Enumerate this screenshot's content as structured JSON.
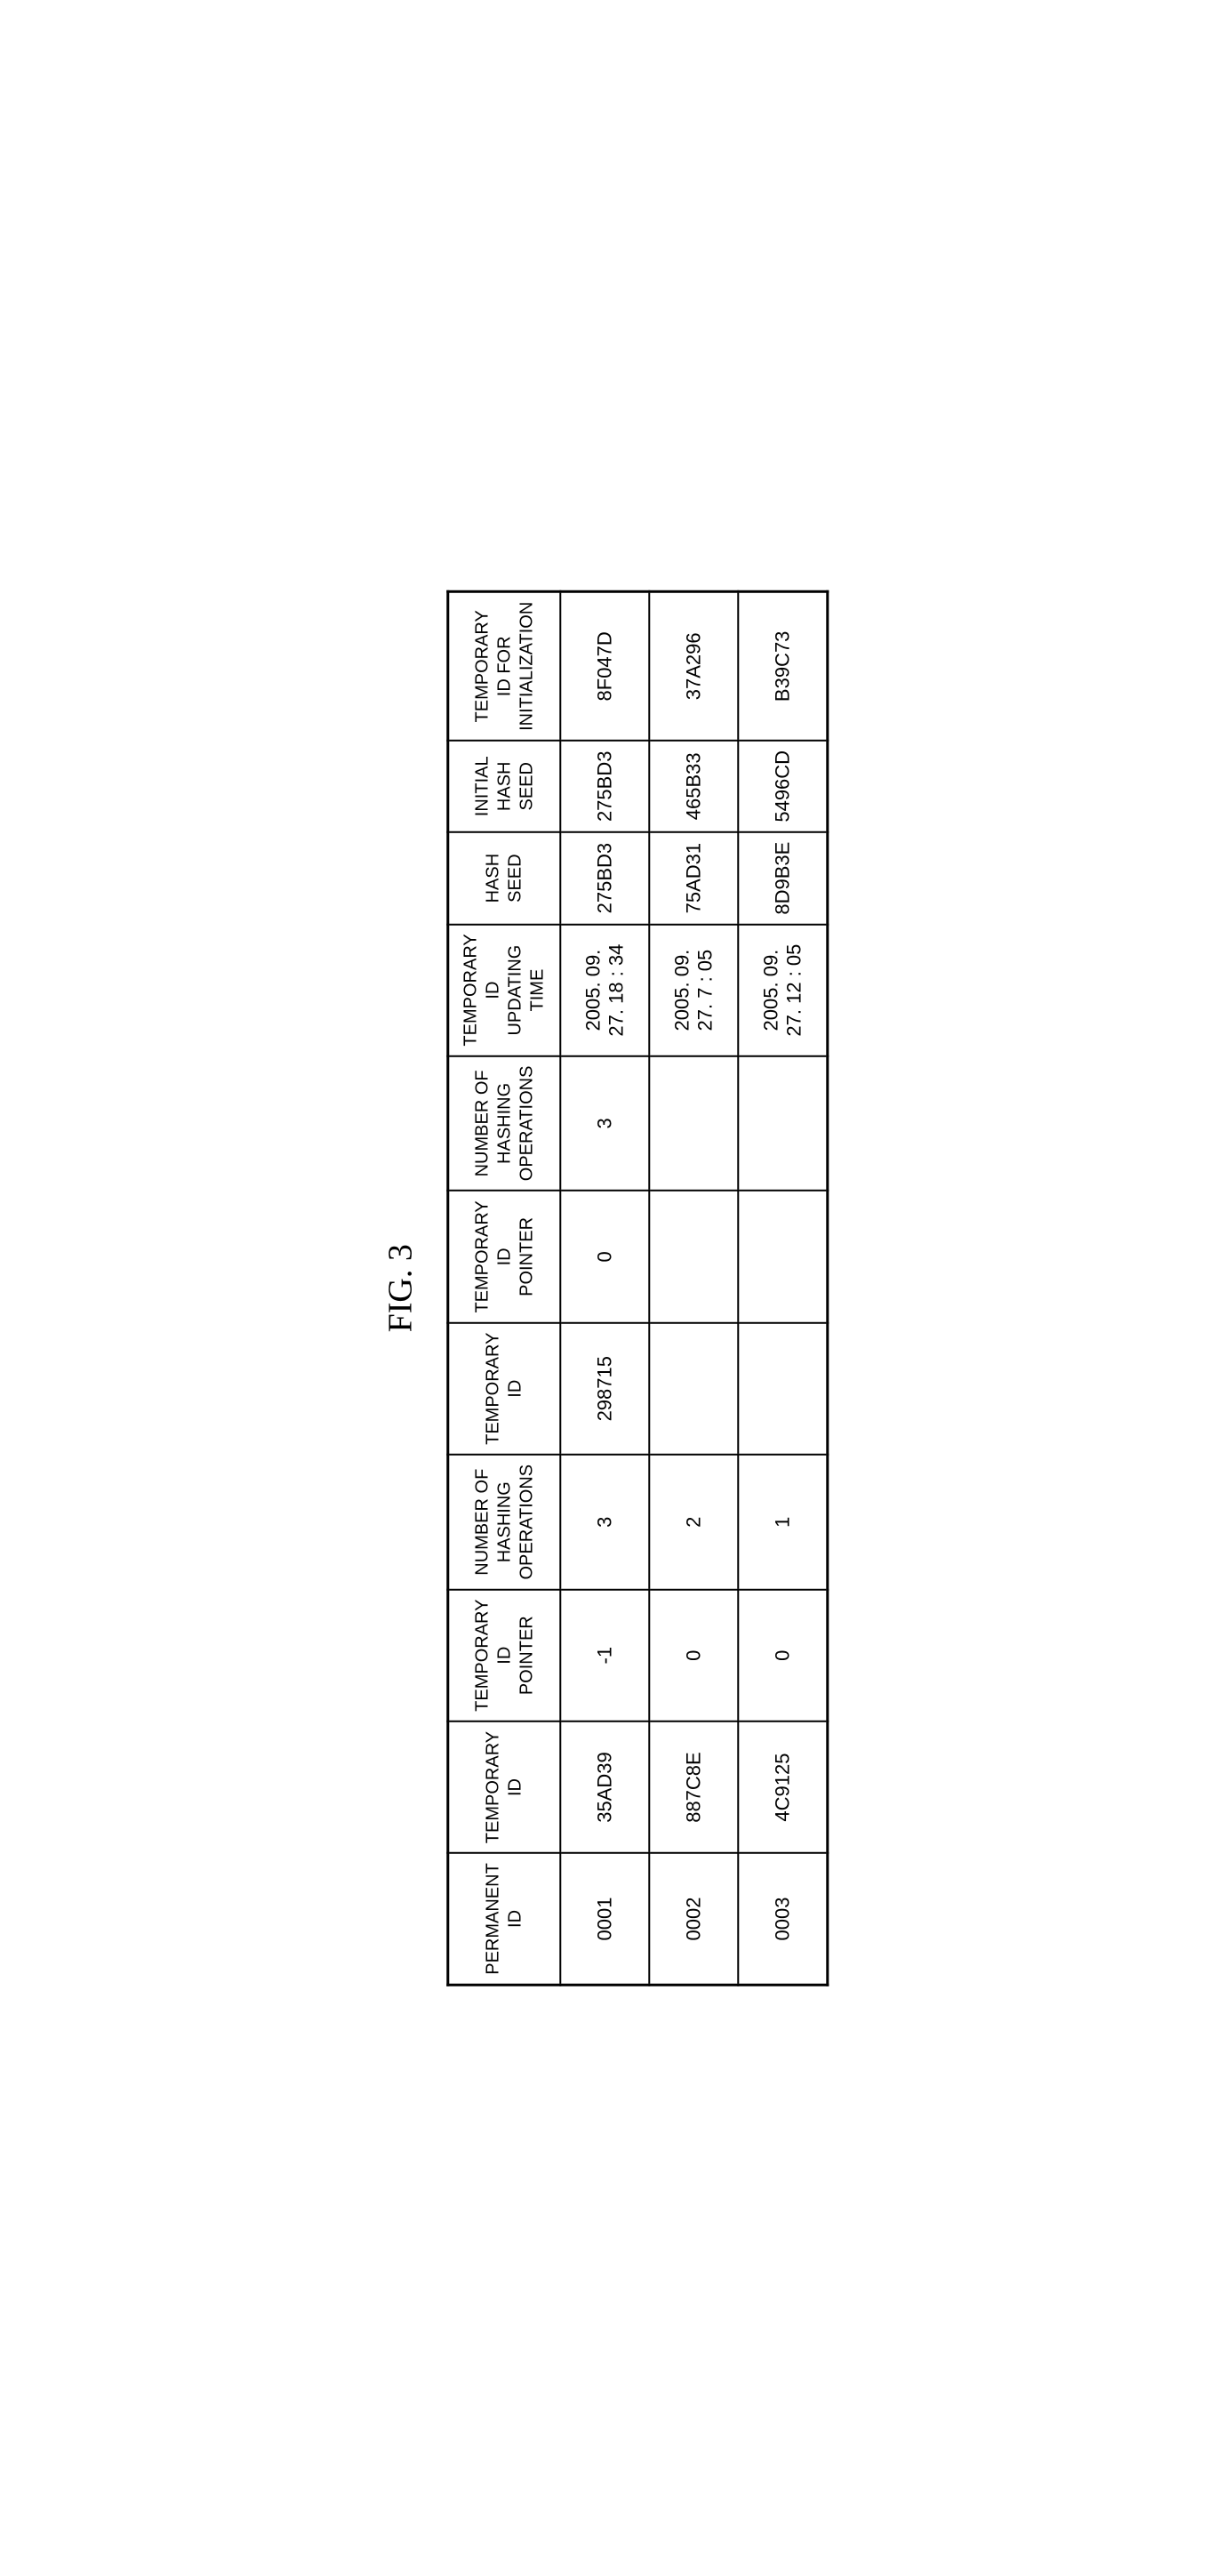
{
  "figure_title": "FIG. 3",
  "table": {
    "type": "table",
    "headers": [
      "PERMANENT\nID",
      "TEMPORARY\nID",
      "TEMPORARY\nID\nPOINTER",
      "NUMBER OF\nHASHING\nOPERATIONS",
      "TEMPORARY\nID",
      "TEMPORARY\nID\nPOINTER",
      "NUMBER OF\nHASHING\nOPERATIONS",
      "TEMPORARY ID\nUPDATING TIME",
      "HASH SEED",
      "INITIAL\nHASH SEED",
      "TEMPORARY\nID FOR\nINITIALIZATION"
    ],
    "rows": [
      {
        "perm_id": "0001",
        "temp_id_1": "35AD39",
        "temp_ptr_1": "-1",
        "hash_ops_1": "3",
        "temp_id_2": "298715",
        "temp_ptr_2": "0",
        "hash_ops_2": "3",
        "update_time": "2005. 09. 27. 18 : 34",
        "hash_seed": "275BD3",
        "init_hash_seed": "275BD3",
        "temp_id_init": "8F047D"
      },
      {
        "perm_id": "0002",
        "temp_id_1": "887C8E",
        "temp_ptr_1": "0",
        "hash_ops_1": "2",
        "temp_id_2": "",
        "temp_ptr_2": "",
        "hash_ops_2": "",
        "update_time": "2005. 09. 27. 7 : 05",
        "hash_seed": "75AD31",
        "init_hash_seed": "465B33",
        "temp_id_init": "37A296"
      },
      {
        "perm_id": "0003",
        "temp_id_1": "4C9125",
        "temp_ptr_1": "0",
        "hash_ops_1": "1",
        "temp_id_2": "",
        "temp_ptr_2": "",
        "hash_ops_2": "",
        "update_time": "2005. 09. 27. 12 : 05",
        "hash_seed": "8D9B3E",
        "init_hash_seed": "5496CD",
        "temp_id_init": "B39C73"
      }
    ]
  }
}
